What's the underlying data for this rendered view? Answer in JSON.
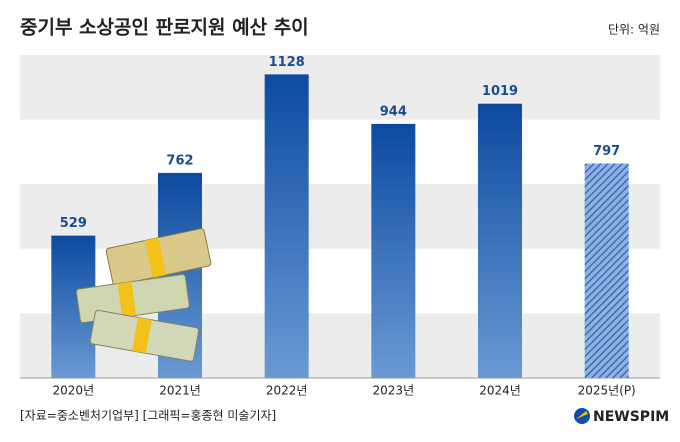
{
  "chart_data": {
    "type": "bar",
    "title": "중기부 소상공인 판로지원 예산 추이",
    "unit": "단위: 억원",
    "categories": [
      "2020년",
      "2021년",
      "2022년",
      "2023년",
      "2024년",
      "2025년(P)"
    ],
    "values": [
      529,
      762,
      1128,
      944,
      1019,
      797
    ],
    "color": "#0d4ea6",
    "ylim": [
      0,
      1200
    ],
    "source": "[자료=중소벤처기업부] [그래픽=홍종현 미술기자]",
    "logo": "NEWSPIM"
  }
}
